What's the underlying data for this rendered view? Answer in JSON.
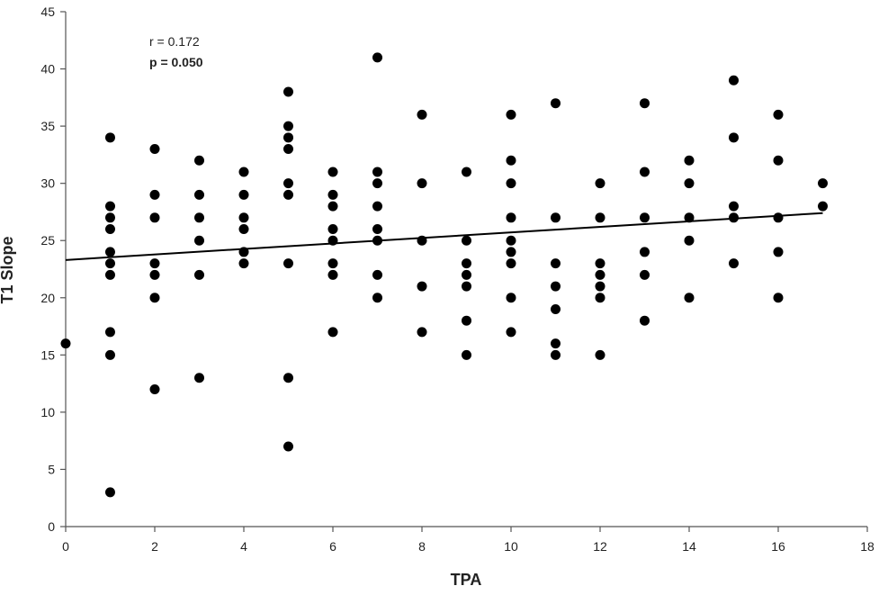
{
  "chart_data": {
    "type": "scatter",
    "title": "",
    "xlabel": "TPA",
    "ylabel": "T1 Slope",
    "xlim": [
      0,
      18
    ],
    "ylim": [
      0,
      45
    ],
    "x_ticks": [
      0,
      2,
      4,
      6,
      8,
      10,
      12,
      14,
      16,
      18
    ],
    "y_ticks": [
      0,
      5,
      10,
      15,
      20,
      25,
      30,
      35,
      40,
      45
    ],
    "grid": false,
    "legend": "none",
    "annotations": {
      "r_text": "r = 0.172",
      "p_text": "p = 0.050"
    },
    "trendline": {
      "x": [
        0,
        17
      ],
      "y": [
        23.3,
        27.4
      ]
    },
    "colors": {
      "points": "#000000",
      "trendline": "#000000",
      "axis": "#555555"
    },
    "points": [
      [
        0,
        16
      ],
      [
        1,
        34
      ],
      [
        1,
        28
      ],
      [
        1,
        27
      ],
      [
        1,
        26
      ],
      [
        1,
        24
      ],
      [
        1,
        23
      ],
      [
        1,
        22
      ],
      [
        1,
        17
      ],
      [
        1,
        15
      ],
      [
        1,
        3
      ],
      [
        2,
        33
      ],
      [
        2,
        29
      ],
      [
        2,
        27
      ],
      [
        2,
        23
      ],
      [
        2,
        22
      ],
      [
        2,
        20
      ],
      [
        2,
        12
      ],
      [
        3,
        32
      ],
      [
        3,
        29
      ],
      [
        3,
        27
      ],
      [
        3,
        25
      ],
      [
        3,
        22
      ],
      [
        3,
        13
      ],
      [
        4,
        31
      ],
      [
        4,
        29
      ],
      [
        4,
        27
      ],
      [
        4,
        26
      ],
      [
        4,
        24
      ],
      [
        4,
        23
      ],
      [
        5,
        38
      ],
      [
        5,
        35
      ],
      [
        5,
        34
      ],
      [
        5,
        33
      ],
      [
        5,
        30
      ],
      [
        5,
        29
      ],
      [
        5,
        23
      ],
      [
        5,
        13
      ],
      [
        5,
        7
      ],
      [
        6,
        31
      ],
      [
        6,
        29
      ],
      [
        6,
        28
      ],
      [
        6,
        26
      ],
      [
        6,
        25
      ],
      [
        6,
        23
      ],
      [
        6,
        22
      ],
      [
        6,
        17
      ],
      [
        7,
        41
      ],
      [
        7,
        31
      ],
      [
        7,
        30
      ],
      [
        7,
        28
      ],
      [
        7,
        26
      ],
      [
        7,
        25
      ],
      [
        7,
        22
      ],
      [
        7,
        20
      ],
      [
        8,
        36
      ],
      [
        8,
        30
      ],
      [
        8,
        25
      ],
      [
        8,
        21
      ],
      [
        8,
        17
      ],
      [
        9,
        31
      ],
      [
        9,
        25
      ],
      [
        9,
        23
      ],
      [
        9,
        22
      ],
      [
        9,
        21
      ],
      [
        9,
        18
      ],
      [
        9,
        15
      ],
      [
        10,
        36
      ],
      [
        10,
        32
      ],
      [
        10,
        30
      ],
      [
        10,
        27
      ],
      [
        10,
        25
      ],
      [
        10,
        24
      ],
      [
        10,
        23
      ],
      [
        10,
        20
      ],
      [
        10,
        17
      ],
      [
        11,
        37
      ],
      [
        11,
        27
      ],
      [
        11,
        23
      ],
      [
        11,
        21
      ],
      [
        11,
        19
      ],
      [
        11,
        16
      ],
      [
        11,
        15
      ],
      [
        12,
        30
      ],
      [
        12,
        27
      ],
      [
        12,
        23
      ],
      [
        12,
        22
      ],
      [
        12,
        21
      ],
      [
        12,
        20
      ],
      [
        12,
        15
      ],
      [
        13,
        37
      ],
      [
        13,
        31
      ],
      [
        13,
        27
      ],
      [
        13,
        24
      ],
      [
        13,
        22
      ],
      [
        13,
        18
      ],
      [
        14,
        32
      ],
      [
        14,
        30
      ],
      [
        14,
        27
      ],
      [
        14,
        25
      ],
      [
        14,
        20
      ],
      [
        15,
        39
      ],
      [
        15,
        34
      ],
      [
        15,
        28
      ],
      [
        15,
        27
      ],
      [
        15,
        23
      ],
      [
        16,
        36
      ],
      [
        16,
        32
      ],
      [
        16,
        27
      ],
      [
        16,
        24
      ],
      [
        16,
        20
      ],
      [
        17,
        30
      ],
      [
        17,
        28
      ]
    ]
  }
}
